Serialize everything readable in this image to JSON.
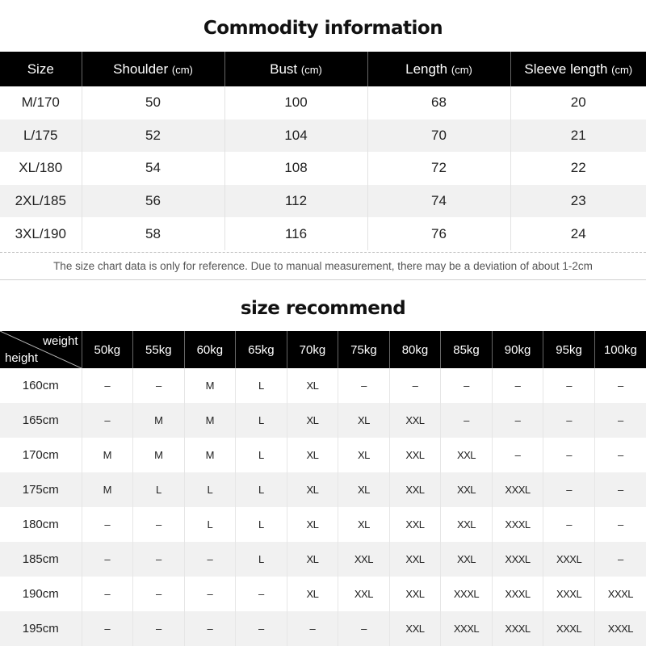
{
  "commodity": {
    "title": "Commodity information",
    "headers": [
      {
        "label": "Size",
        "unit": ""
      },
      {
        "label": "Shoulder ",
        "unit": "(cm)"
      },
      {
        "label": "Bust ",
        "unit": "(cm)"
      },
      {
        "label": "Length ",
        "unit": "(cm)"
      },
      {
        "label": "Sleeve length ",
        "unit": "(cm)"
      }
    ],
    "rows": [
      [
        "M/170",
        "50",
        "100",
        "68",
        "20"
      ],
      [
        "L/175",
        "52",
        "104",
        "70",
        "21"
      ],
      [
        "XL/180",
        "54",
        "108",
        "72",
        "22"
      ],
      [
        "2XL/185",
        "56",
        "112",
        "74",
        "23"
      ],
      [
        "3XL/190",
        "58",
        "116",
        "76",
        "24"
      ]
    ],
    "note": "The size chart data is only for reference. Due to manual measurement, there may be a deviation of about 1-2cm"
  },
  "recommend": {
    "title": "size recommend",
    "corner_weight": "weight",
    "corner_height": "height",
    "weights": [
      "50kg",
      "55kg",
      "60kg",
      "65kg",
      "70kg",
      "75kg",
      "80kg",
      "85kg",
      "90kg",
      "95kg",
      "100kg"
    ],
    "rows": [
      {
        "height": "160cm",
        "sizes": [
          "–",
          "–",
          "M",
          "L",
          "XL",
          "–",
          "–",
          "–",
          "–",
          "–",
          "–"
        ]
      },
      {
        "height": "165cm",
        "sizes": [
          "–",
          "M",
          "M",
          "L",
          "XL",
          "XL",
          "XXL",
          "–",
          "–",
          "–",
          "–"
        ]
      },
      {
        "height": "170cm",
        "sizes": [
          "M",
          "M",
          "M",
          "L",
          "XL",
          "XL",
          "XXL",
          "XXL",
          "–",
          "–",
          "–"
        ]
      },
      {
        "height": "175cm",
        "sizes": [
          "M",
          "L",
          "L",
          "L",
          "XL",
          "XL",
          "XXL",
          "XXL",
          "XXXL",
          "–",
          "–"
        ]
      },
      {
        "height": "180cm",
        "sizes": [
          "–",
          "–",
          "L",
          "L",
          "XL",
          "XL",
          "XXL",
          "XXL",
          "XXXL",
          "–",
          "–"
        ]
      },
      {
        "height": "185cm",
        "sizes": [
          "–",
          "–",
          "–",
          "L",
          "XL",
          "XXL",
          "XXL",
          "XXL",
          "XXXL",
          "XXXL",
          "–"
        ]
      },
      {
        "height": "190cm",
        "sizes": [
          "–",
          "–",
          "–",
          "–",
          "XL",
          "XXL",
          "XXL",
          "XXXL",
          "XXXL",
          "XXXL",
          "XXXL"
        ]
      },
      {
        "height": "195cm",
        "sizes": [
          "–",
          "–",
          "–",
          "–",
          "–",
          "–",
          "XXL",
          "XXXL",
          "XXXL",
          "XXXL",
          "XXXL"
        ]
      }
    ]
  }
}
